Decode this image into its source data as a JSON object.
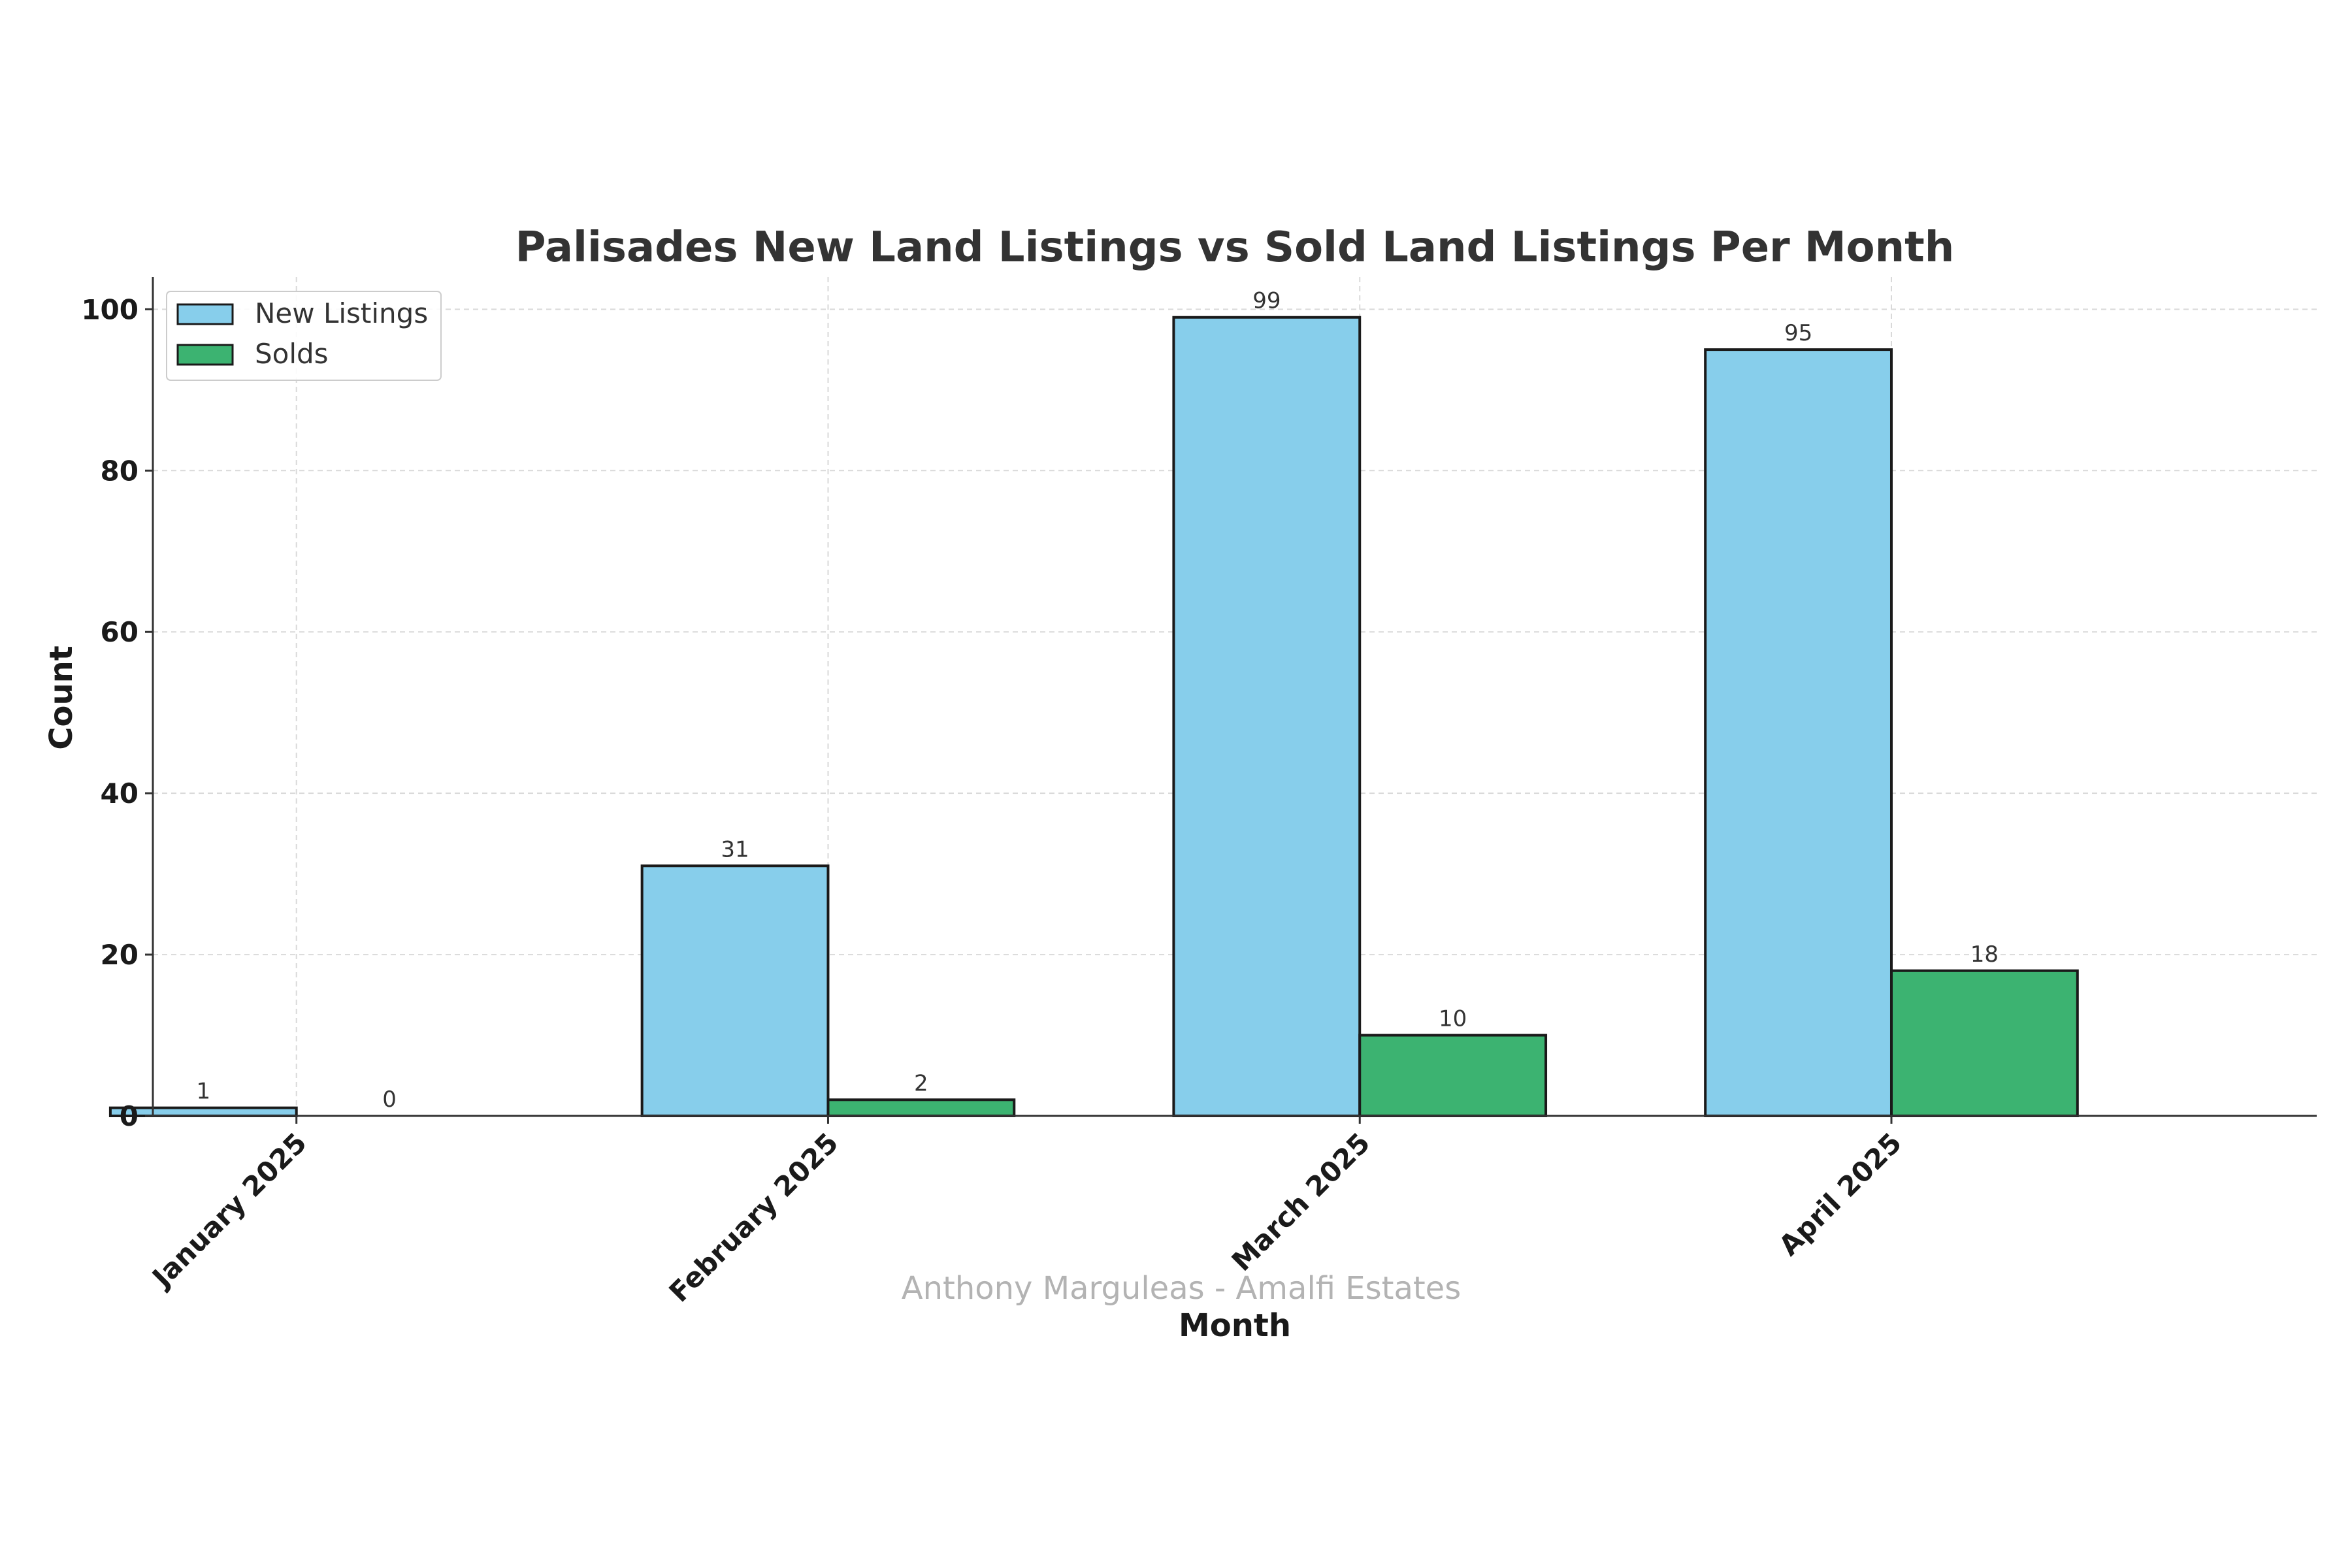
{
  "chart_data": {
    "type": "bar",
    "title": "Palisades New Land Listings vs Sold Land Listings Per Month",
    "xlabel": "Month",
    "ylabel": "Count",
    "categories": [
      "January 2025",
      "February 2025",
      "March 2025",
      "April 2025"
    ],
    "series": [
      {
        "name": "New Listings",
        "color": "#87CEEB",
        "values": [
          1,
          31,
          99,
          95
        ]
      },
      {
        "name": "Solds",
        "color": "#3CB371",
        "values": [
          0,
          2,
          10,
          18
        ]
      }
    ],
    "ylim": [
      0,
      104
    ],
    "yticks": [
      0,
      20,
      40,
      60,
      80,
      100
    ],
    "grid": true,
    "legend": "top-left",
    "watermark": "Anthony Marguleas - Amalfi Estates"
  }
}
